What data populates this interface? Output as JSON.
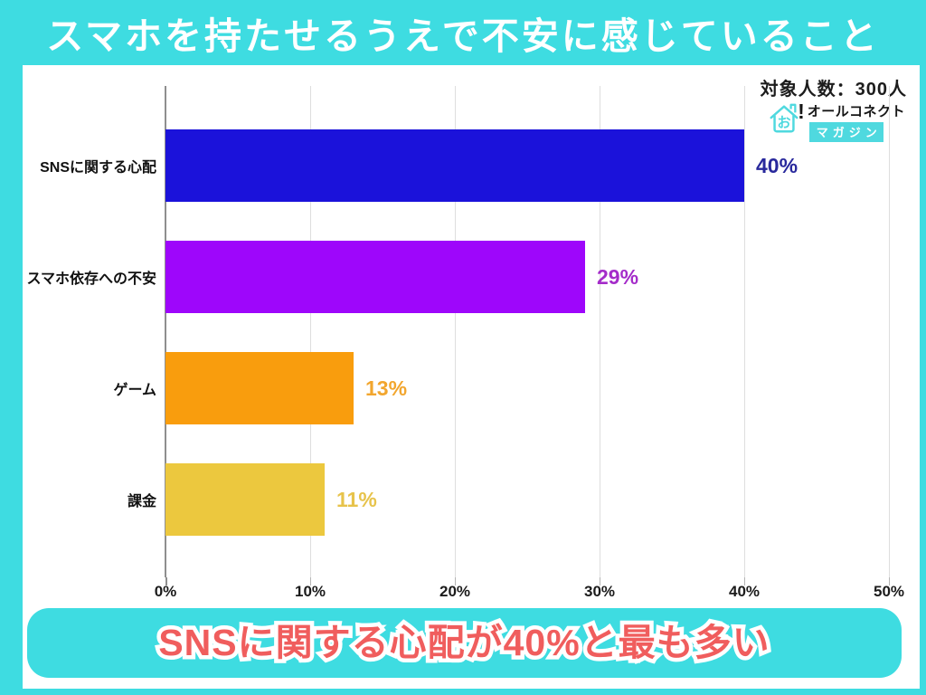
{
  "title": "スマホを持たせるうえで不安に感じていること",
  "sample_size_label": "対象人数：300人",
  "logo": {
    "icon_char": "お",
    "exclamation": "!",
    "brand": "オールコネクト",
    "brand_sub": "マガジン"
  },
  "chart_data": {
    "type": "bar",
    "orientation": "horizontal",
    "title": "スマホを持たせるうえで不安に感じていること",
    "categories": [
      "SNSに関する心配",
      "スマホ依存への不安",
      "ゲーム",
      "課金"
    ],
    "values": [
      40,
      29,
      13,
      11
    ],
    "value_labels": [
      "40%",
      "29%",
      "13%",
      "11%"
    ],
    "bar_colors": [
      "#1b12da",
      "#9e06fb",
      "#f99d0d",
      "#ecc83e"
    ],
    "value_label_colors": [
      "#28289c",
      "#a42cc9",
      "#f2a62e",
      "#e7c34b"
    ],
    "xlabel": "",
    "ylabel": "",
    "xlim": [
      0,
      50
    ],
    "x_ticks": [
      0,
      10,
      20,
      30,
      40,
      50
    ],
    "x_tick_labels": [
      "0%",
      "10%",
      "20%",
      "30%",
      "40%",
      "50%"
    ],
    "grid": true,
    "legend": false,
    "unit": "%"
  },
  "callout": "SNSに関する心配が40%と最も多い",
  "colors": {
    "frame": "#3edce1",
    "panel": "#ffffff",
    "title_text": "#ffffff",
    "callout_text": "#f05d5d",
    "logo_accent": "#4fd9df",
    "axis": "#8f8f8f",
    "gridline": "#dedede",
    "tick": "#b5b5b5",
    "text": "#1b1b1b"
  }
}
